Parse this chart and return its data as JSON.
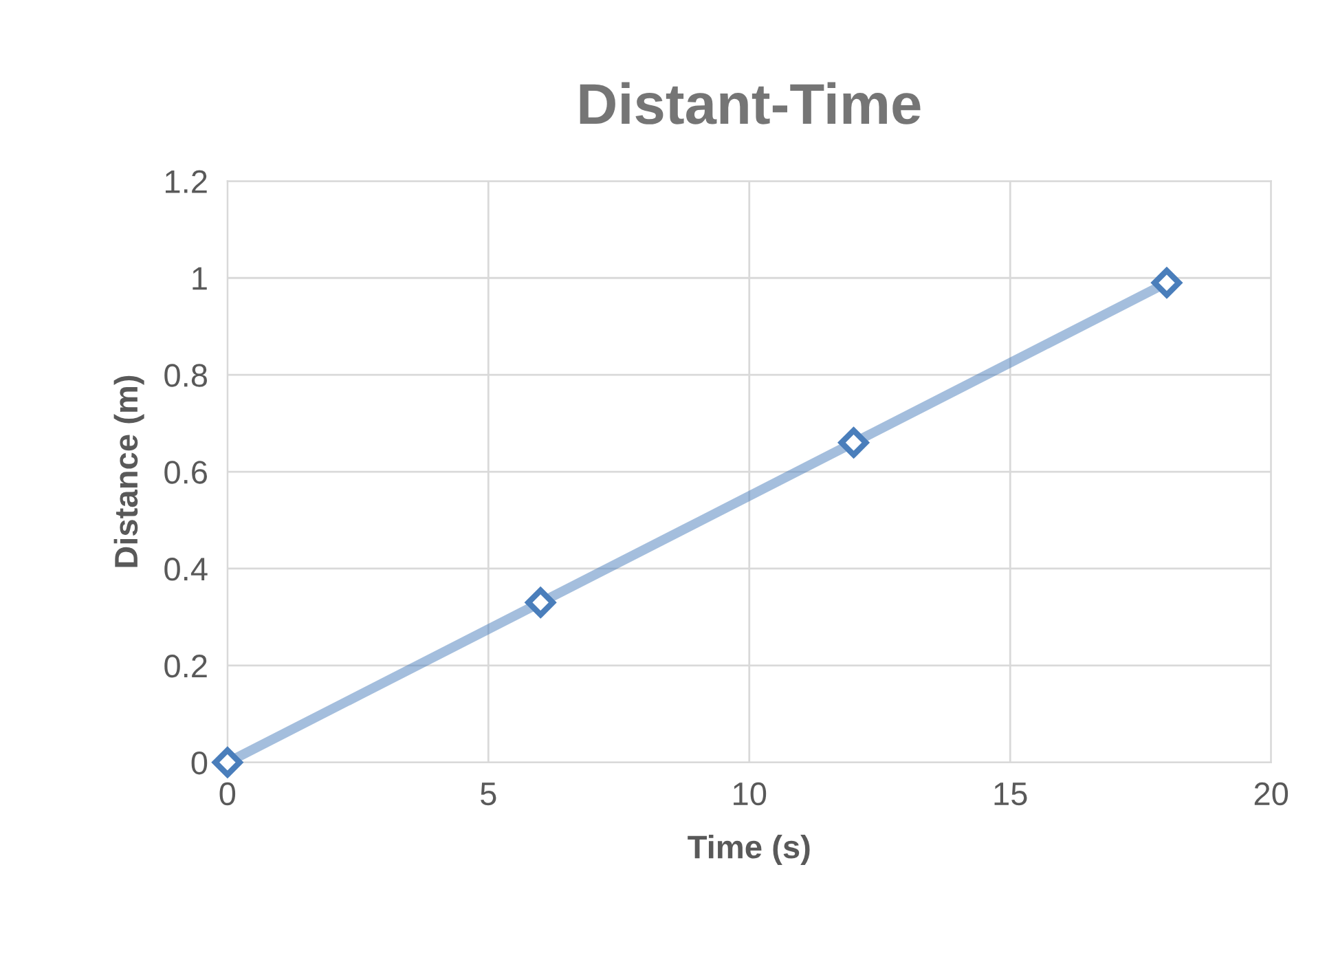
{
  "chart_data": {
    "type": "line",
    "title": "Distant-Time",
    "xlabel": "Time (s)",
    "ylabel": "Distance (m)",
    "x": [
      0,
      6,
      12,
      18
    ],
    "series": [
      {
        "color": "#4a7ebb",
        "values": [
          0,
          0.33,
          0.66,
          0.99
        ]
      }
    ],
    "xlim": [
      0,
      20
    ],
    "xticks": [
      0,
      5,
      10,
      15,
      20
    ],
    "ylim": [
      0,
      1.2
    ],
    "yticks": [
      0,
      0.2,
      0.4,
      0.6,
      0.8,
      1,
      1.2
    ],
    "grid": true,
    "marker": "diamond",
    "line_style": "solid"
  }
}
